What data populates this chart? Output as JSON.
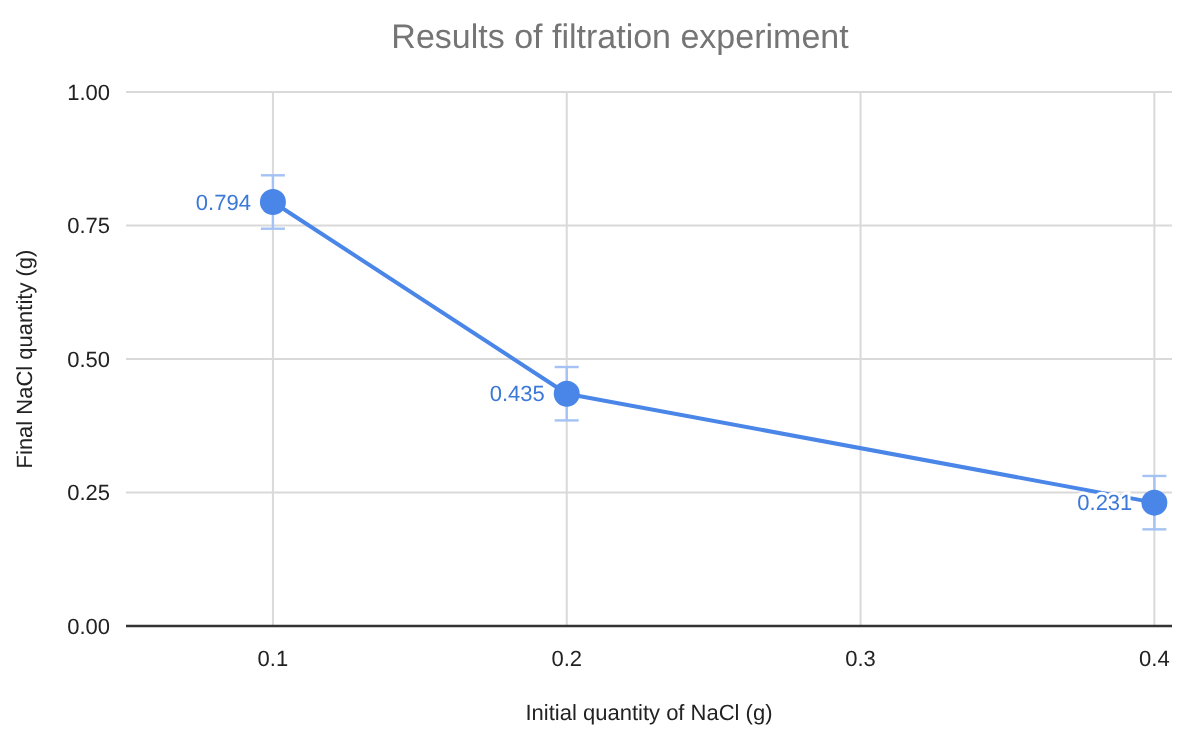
{
  "chart_data": {
    "type": "line",
    "title": "Results of filtration experiment",
    "xlabel": "Initial quantity of NaCl (g)",
    "ylabel": "Final NaCl quantity (g)",
    "x": [
      0.1,
      0.2,
      0.4
    ],
    "series": [
      {
        "color": "#4a86e8",
        "values": [
          0.794,
          0.435,
          0.231
        ],
        "errors": [
          0.05,
          0.05,
          0.05
        ]
      }
    ],
    "xlim": [
      0.05,
      0.406
    ],
    "xticks": [
      0.1,
      0.2,
      0.3,
      0.4
    ],
    "ylim": [
      0,
      1
    ],
    "yticks": [
      {
        "value": 0,
        "label": "0.00"
      },
      {
        "value": 0.25,
        "label": "0.25"
      },
      {
        "value": 0.5,
        "label": "0.50"
      },
      {
        "value": 0.75,
        "label": "0.75"
      },
      {
        "value": 1,
        "label": "1.00"
      }
    ],
    "grid": true,
    "marker": "circle",
    "line_style": "solid",
    "data_labels": true
  }
}
